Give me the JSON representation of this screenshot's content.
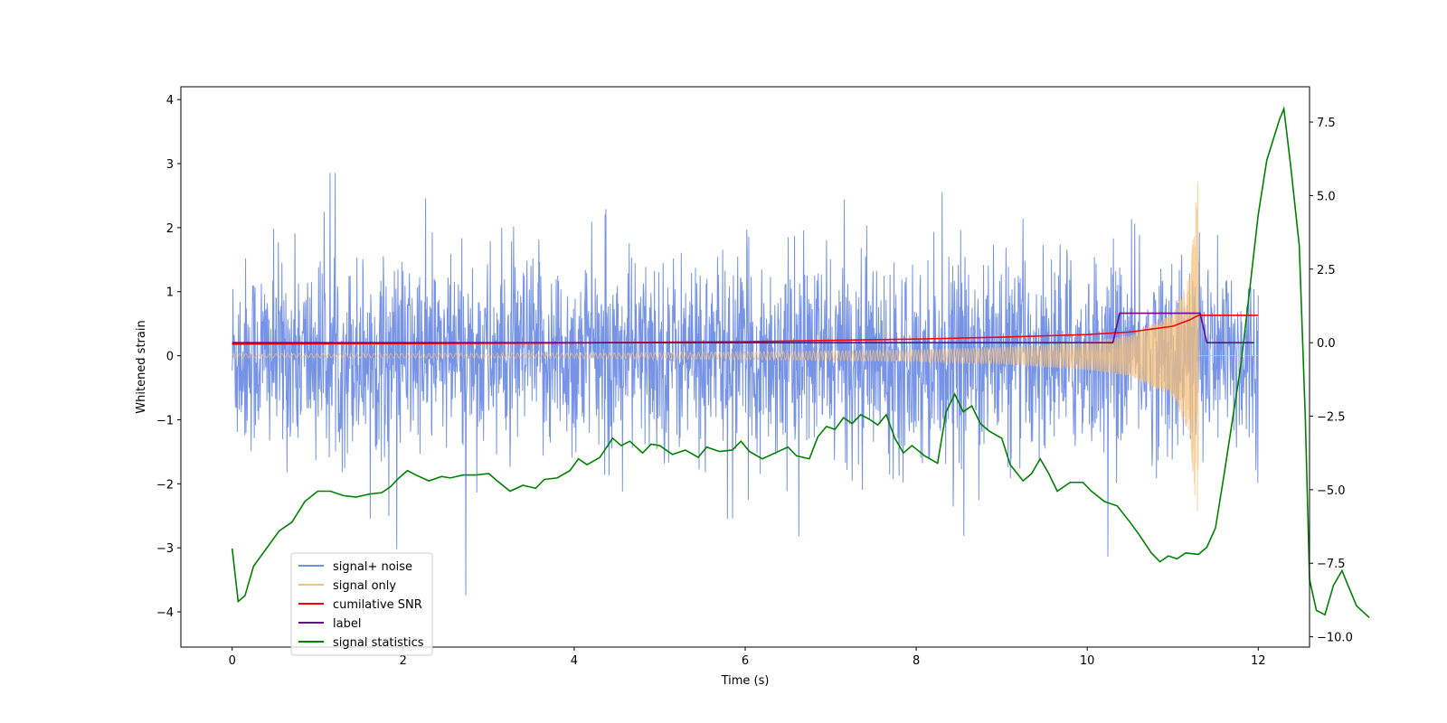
{
  "chart_data": {
    "type": "line",
    "title": "",
    "xlabel": "Time (s)",
    "ylabel": "Whitened strain",
    "y2label": "",
    "xlim": [
      -0.6,
      12.6
    ],
    "ylim": [
      -4.55,
      4.2
    ],
    "y2lim": [
      -10.35,
      8.7
    ],
    "x_ticks": [
      0,
      2,
      4,
      6,
      8,
      10,
      12
    ],
    "x_tick_labels": [
      "0",
      "2",
      "4",
      "6",
      "8",
      "10",
      "12"
    ],
    "y_ticks": [
      -4,
      -3,
      -2,
      -1,
      0,
      1,
      2,
      3,
      4
    ],
    "y_tick_labels": [
      "−4",
      "−3",
      "−2",
      "−1",
      "0",
      "1",
      "2",
      "3",
      "4"
    ],
    "y2_ticks": [
      -10,
      -7.5,
      -5,
      -2.5,
      0,
      2.5,
      5,
      7.5
    ],
    "y2_tick_labels": [
      "−10.0",
      "−7.5",
      "−5.0",
      "−2.5",
      "0.0",
      "2.5",
      "5.0",
      "7.5"
    ],
    "grid": false,
    "legend_position": "lower-left",
    "series": [
      {
        "name": "signal+ noise",
        "axis": "left",
        "color": "#6f8de5",
        "style": "noise",
        "x_range": [
          0,
          12
        ],
        "sigma": 0.75,
        "envelope_max": [
          3.8,
          3.8
        ],
        "envelope_min": [
          -4.15,
          -4.15
        ]
      },
      {
        "name": "signal only",
        "axis": "left",
        "color": "#f5c07a",
        "style": "chirp",
        "x_range": [
          0,
          11.3
        ],
        "flat_after": [
          11.3,
          12
        ],
        "amplitude": [
          [
            0,
            0.03
          ],
          [
            4,
            0.04
          ],
          [
            6,
            0.06
          ],
          [
            8,
            0.09
          ],
          [
            9,
            0.13
          ],
          [
            10,
            0.22
          ],
          [
            10.5,
            0.32
          ],
          [
            11,
            0.65
          ],
          [
            11.2,
            1.25
          ],
          [
            11.3,
            2.85
          ]
        ]
      },
      {
        "name": "cumilative SNR",
        "axis": "left",
        "color": "#ff0000",
        "points": [
          [
            0,
            0.18
          ],
          [
            2,
            0.19
          ],
          [
            4,
            0.2
          ],
          [
            6,
            0.22
          ],
          [
            8,
            0.26
          ],
          [
            9,
            0.29
          ],
          [
            10,
            0.33
          ],
          [
            10.5,
            0.37
          ],
          [
            11,
            0.46
          ],
          [
            11.2,
            0.56
          ],
          [
            11.3,
            0.63
          ],
          [
            12,
            0.63
          ]
        ]
      },
      {
        "name": "label",
        "axis": "right",
        "color": "#6a0a8a",
        "points": [
          [
            0,
            0.0
          ],
          [
            10.3,
            0.0
          ],
          [
            10.38,
            1.0
          ],
          [
            11.32,
            1.0
          ],
          [
            11.4,
            0.0
          ],
          [
            11.95,
            0.0
          ]
        ]
      },
      {
        "name": "signal statistics",
        "axis": "right",
        "color": "#008000",
        "points": [
          [
            0,
            -7.0
          ],
          [
            0.07,
            -8.8
          ],
          [
            0.15,
            -8.6
          ],
          [
            0.25,
            -7.6
          ],
          [
            0.4,
            -7.0
          ],
          [
            0.55,
            -6.4
          ],
          [
            0.7,
            -6.1
          ],
          [
            0.85,
            -5.4
          ],
          [
            1.0,
            -5.05
          ],
          [
            1.15,
            -5.05
          ],
          [
            1.3,
            -5.2
          ],
          [
            1.45,
            -5.25
          ],
          [
            1.6,
            -5.15
          ],
          [
            1.75,
            -5.1
          ],
          [
            1.85,
            -4.9
          ],
          [
            1.95,
            -4.6
          ],
          [
            2.05,
            -4.35
          ],
          [
            2.15,
            -4.5
          ],
          [
            2.3,
            -4.7
          ],
          [
            2.45,
            -4.55
          ],
          [
            2.55,
            -4.6
          ],
          [
            2.7,
            -4.5
          ],
          [
            2.85,
            -4.5
          ],
          [
            3.0,
            -4.45
          ],
          [
            3.1,
            -4.7
          ],
          [
            3.25,
            -5.05
          ],
          [
            3.4,
            -4.85
          ],
          [
            3.55,
            -4.95
          ],
          [
            3.65,
            -4.65
          ],
          [
            3.8,
            -4.6
          ],
          [
            3.95,
            -4.35
          ],
          [
            4.05,
            -3.95
          ],
          [
            4.15,
            -4.15
          ],
          [
            4.3,
            -3.9
          ],
          [
            4.45,
            -3.25
          ],
          [
            4.55,
            -3.5
          ],
          [
            4.65,
            -3.35
          ],
          [
            4.8,
            -3.75
          ],
          [
            4.9,
            -3.45
          ],
          [
            5.0,
            -3.5
          ],
          [
            5.15,
            -3.8
          ],
          [
            5.3,
            -3.65
          ],
          [
            5.45,
            -3.9
          ],
          [
            5.55,
            -3.55
          ],
          [
            5.7,
            -3.7
          ],
          [
            5.85,
            -3.65
          ],
          [
            5.95,
            -3.35
          ],
          [
            6.05,
            -3.7
          ],
          [
            6.2,
            -3.95
          ],
          [
            6.35,
            -3.75
          ],
          [
            6.5,
            -3.55
          ],
          [
            6.6,
            -3.85
          ],
          [
            6.75,
            -3.95
          ],
          [
            6.85,
            -3.2
          ],
          [
            6.95,
            -2.85
          ],
          [
            7.05,
            -2.95
          ],
          [
            7.15,
            -2.55
          ],
          [
            7.25,
            -2.75
          ],
          [
            7.35,
            -2.45
          ],
          [
            7.45,
            -2.6
          ],
          [
            7.55,
            -2.8
          ],
          [
            7.65,
            -2.45
          ],
          [
            7.75,
            -3.25
          ],
          [
            7.85,
            -3.75
          ],
          [
            7.95,
            -3.5
          ],
          [
            8.1,
            -3.85
          ],
          [
            8.25,
            -4.1
          ],
          [
            8.35,
            -2.35
          ],
          [
            8.45,
            -1.75
          ],
          [
            8.55,
            -2.35
          ],
          [
            8.65,
            -2.15
          ],
          [
            8.75,
            -2.75
          ],
          [
            8.85,
            -3.0
          ],
          [
            9.0,
            -3.25
          ],
          [
            9.1,
            -4.15
          ],
          [
            9.25,
            -4.7
          ],
          [
            9.35,
            -4.45
          ],
          [
            9.45,
            -3.95
          ],
          [
            9.55,
            -4.45
          ],
          [
            9.65,
            -5.05
          ],
          [
            9.8,
            -4.75
          ],
          [
            9.95,
            -4.75
          ],
          [
            10.05,
            -5.05
          ],
          [
            10.2,
            -5.4
          ],
          [
            10.35,
            -5.55
          ],
          [
            10.5,
            -6.1
          ],
          [
            10.6,
            -6.5
          ],
          [
            10.75,
            -7.15
          ],
          [
            10.85,
            -7.45
          ],
          [
            10.95,
            -7.25
          ],
          [
            11.05,
            -7.35
          ],
          [
            11.15,
            -7.15
          ],
          [
            11.3,
            -7.2
          ],
          [
            11.4,
            -6.95
          ],
          [
            11.5,
            -6.3
          ],
          [
            11.6,
            -4.5
          ],
          [
            11.7,
            -2.6
          ],
          [
            11.8,
            -0.7
          ],
          [
            11.9,
            1.8
          ],
          [
            12.0,
            4.35
          ],
          [
            12.1,
            6.2
          ],
          [
            12.25,
            7.6
          ],
          [
            12.3,
            7.95
          ],
          [
            12.38,
            6.0
          ],
          [
            12.48,
            3.3
          ],
          [
            12.55,
            -2.5
          ],
          [
            12.6,
            -8.05
          ],
          [
            12.68,
            -9.1
          ],
          [
            12.78,
            -9.25
          ],
          [
            12.88,
            -8.25
          ],
          [
            12.98,
            -7.75
          ],
          [
            13.05,
            -8.25
          ],
          [
            13.15,
            -8.95
          ],
          [
            13.3,
            -9.35
          ]
        ]
      }
    ]
  },
  "legend": {
    "items": [
      {
        "label": "signal+ noise",
        "color": "#6f8de5"
      },
      {
        "label": "signal only",
        "color": "#f5c07a"
      },
      {
        "label": "cumilative SNR",
        "color": "#ff0000"
      },
      {
        "label": "label",
        "color": "#6a0a8a"
      },
      {
        "label": "signal statistics",
        "color": "#008000"
      }
    ]
  }
}
